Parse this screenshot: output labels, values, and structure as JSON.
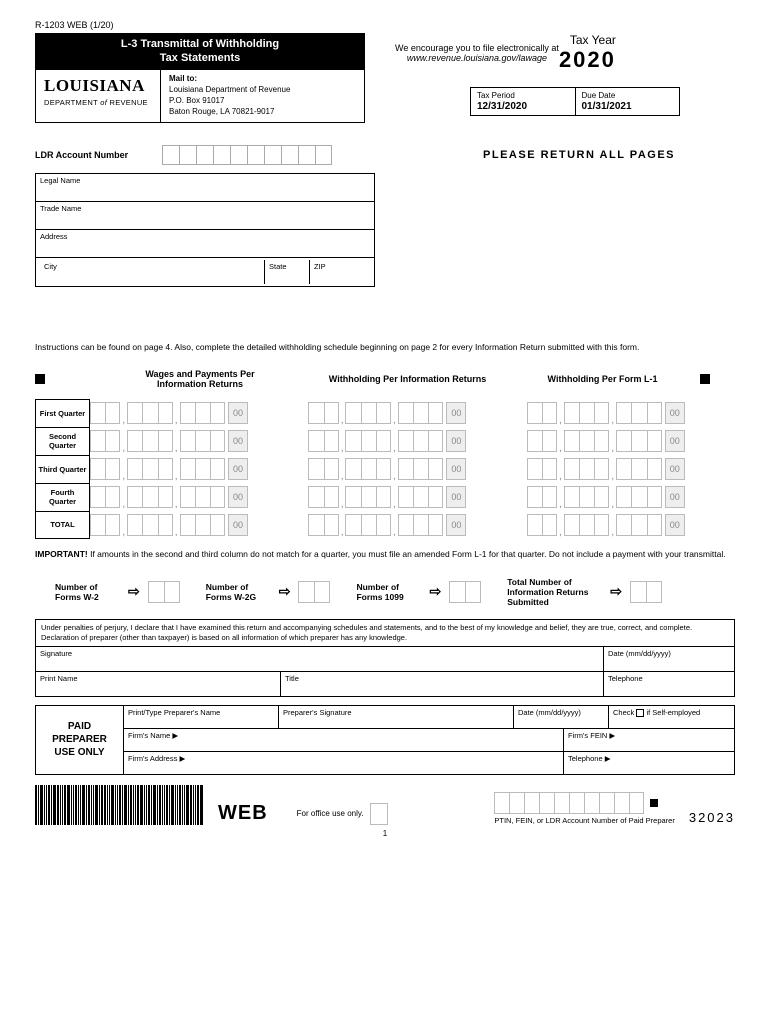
{
  "form_id": "R-1203 WEB (1/20)",
  "title_line1": "L-3 Transmittal of Withholding",
  "title_line2": "Tax Statements",
  "logo": {
    "main": "LOUISIANA",
    "sub_pre": "DEPARTMENT ",
    "sub_of": "of",
    "sub_post": " REVENUE"
  },
  "mail_to": {
    "label": "Mail to:",
    "line1": "Louisiana Department of Revenue",
    "line2": "P.O. Box 91017",
    "line3": "Baton Rouge, LA 70821-9017"
  },
  "encourage": "We encourage you to file electronically at",
  "url": "www.revenue.louisiana.gov/lawage",
  "tax_year_label": "Tax Year",
  "tax_year": "2020",
  "tax_period_label": "Tax Period",
  "tax_period": "12/31/2020",
  "due_date_label": "Due Date",
  "due_date": "01/31/2021",
  "acct_label": "LDR Account Number",
  "return_pages": "PLEASE RETURN ALL PAGES",
  "fields": {
    "legal_name": "Legal Name",
    "trade_name": "Trade Name",
    "address": "Address",
    "city": "City",
    "state": "State",
    "zip": "ZIP"
  },
  "instructions": "Instructions can be found on page 4. Also, complete the detailed withholding schedule beginning on page 2 for every Information Return submitted with this form.",
  "col_heads": {
    "c1a": "Wages and Payments Per",
    "c1b": "Information Returns",
    "c2": "Withholding Per Information Returns",
    "c3": "Withholding Per Form L-1"
  },
  "quarters": [
    "First Quarter",
    "Second Quarter",
    "Third Quarter",
    "Fourth Quarter",
    "TOTAL"
  ],
  "cents": "00",
  "important_label": "IMPORTANT!",
  "important_text": " If amounts in the second and third column do not match for a quarter, you must file an amended Form L-1 for that quarter. Do not include a payment with your transmittal.",
  "forms": {
    "w2": "Number of Forms W-2",
    "w2g": "Number of Forms W-2G",
    "f1099": "Number of Forms 1099",
    "total": "Total Number of Information Returns Submitted"
  },
  "perjury": "Under penalties of perjury, I declare that I have examined this return and accompanying schedules and statements, and to the best of my knowledge and belief, they are true, correct, and complete. Declaration of preparer (other than taxpayer) is based on all information of which preparer has any knowledge.",
  "sig": {
    "signature": "Signature",
    "date": "Date (mm/dd/yyyy)",
    "print_name": "Print Name",
    "title": "Title",
    "telephone": "Telephone"
  },
  "preparer": {
    "heading1": "PAID",
    "heading2": "PREPARER",
    "heading3": "USE ONLY",
    "name": "Print/Type Preparer's Name",
    "psig": "Preparer's Signature",
    "pdate": "Date (mm/dd/yyyy)",
    "check": "Check",
    "self": "if Self-employed",
    "firm_name": "Firm's Name ▶",
    "firm_fein": "Firm's FEIN ▶",
    "firm_addr": "Firm's Address ▶",
    "firm_tel": "Telephone ▶"
  },
  "web": "WEB",
  "office_only": "For office use only.",
  "ptin_label": "PTIN, FEIN, or LDR Account Number of Paid Preparer",
  "form_number": "32023",
  "page_number": "1",
  "acct_box_count": 10,
  "ptin_box_count": 10,
  "barcode_widths": [
    2,
    1,
    3,
    1,
    1,
    2,
    1,
    3,
    2,
    1,
    1,
    2,
    3,
    1,
    1,
    2,
    1,
    1,
    3,
    1,
    2,
    1,
    1,
    3,
    1,
    2,
    2,
    1,
    1,
    3,
    1,
    1,
    2,
    1,
    3,
    1,
    2,
    1,
    1,
    2,
    3,
    1,
    1,
    2,
    1,
    3,
    1,
    2,
    1,
    1,
    2,
    1,
    3,
    1,
    1,
    2,
    1,
    1,
    3,
    2,
    1,
    1,
    2,
    3
  ]
}
